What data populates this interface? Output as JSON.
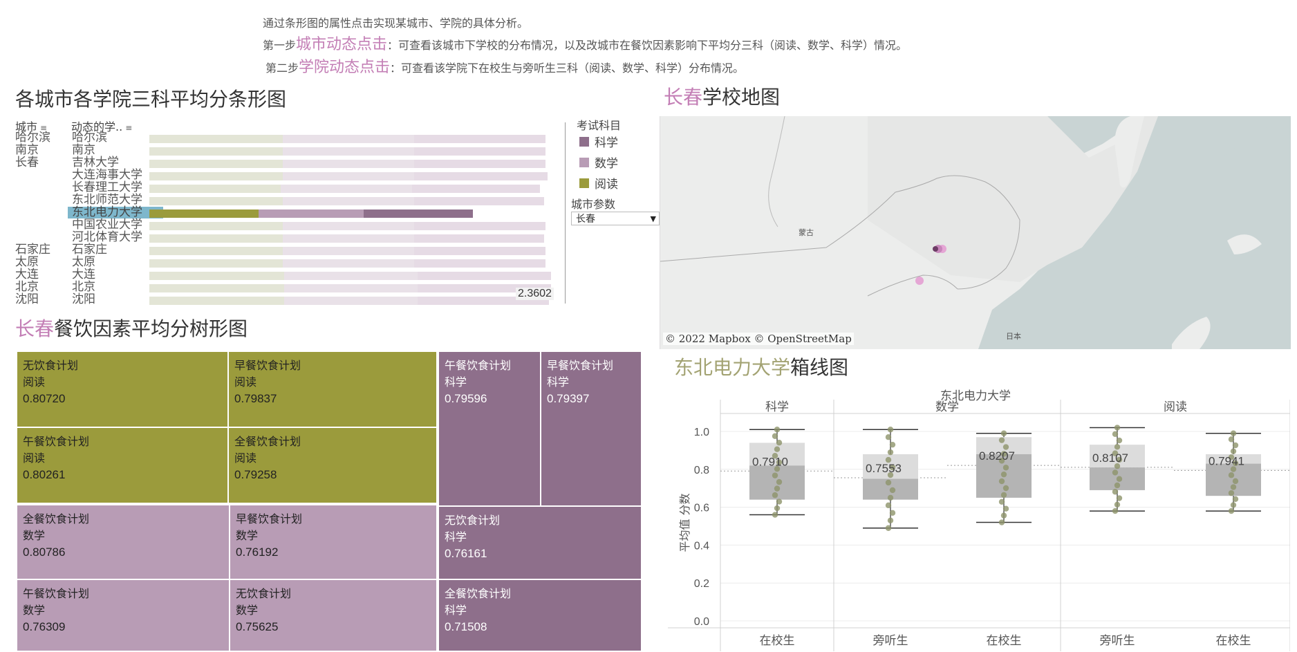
{
  "instructions": {
    "line1": "通过条形图的属性点击实现某城市、学院的具体分析。",
    "line2_prefix": "第一步",
    "line2_highlight": "城市动态点击",
    "line2_rest": "：可查看该城市下学校的分布情况，以及改城市在餐饮因素影响下平均分三科（阅读、数学、科学）情况。",
    "line3_prefix": "第二步",
    "line3_highlight": "学院动态点击",
    "line3_rest": "：可查看该学院下在校生与旁听生三科（阅读、数学、科学）分布情况。"
  },
  "bar_section": {
    "title": "各城市各学院三科平均分条形图",
    "col_city": "城市",
    "col_school": "动态的学..",
    "total_label": "2.3602",
    "rows": [
      {
        "city": "哈尔滨",
        "school": "哈尔滨",
        "read": 0.79,
        "math": 0.78,
        "sci": 0.78,
        "selected": false
      },
      {
        "city": "南京",
        "school": "南京",
        "read": 0.79,
        "math": 0.78,
        "sci": 0.78,
        "selected": false
      },
      {
        "city": "长春",
        "school": "吉林大学",
        "read": 0.79,
        "math": 0.78,
        "sci": 0.78,
        "selected": false
      },
      {
        "city": "",
        "school": "大连海事大学",
        "read": 0.79,
        "math": 0.78,
        "sci": 0.79,
        "selected": false
      },
      {
        "city": "",
        "school": "长春理工大学",
        "read": 0.78,
        "math": 0.78,
        "sci": 0.76,
        "selected": false
      },
      {
        "city": "",
        "school": "东北师范大学",
        "read": 0.79,
        "math": 0.78,
        "sci": 0.77,
        "selected": false
      },
      {
        "city": "",
        "school": "东北电力大学",
        "read": 0.79,
        "math": 0.76,
        "sci": 0.79,
        "selected": true
      },
      {
        "city": "",
        "school": "中国农业大学",
        "read": 0.79,
        "math": 0.78,
        "sci": 0.78,
        "selected": false
      },
      {
        "city": "",
        "school": "河北体育大学",
        "read": 0.79,
        "math": 0.78,
        "sci": 0.77,
        "selected": false
      },
      {
        "city": "石家庄",
        "school": "石家庄",
        "read": 0.79,
        "math": 0.78,
        "sci": 0.78,
        "selected": false
      },
      {
        "city": "太原",
        "school": "太原",
        "read": 0.79,
        "math": 0.78,
        "sci": 0.78,
        "selected": false
      },
      {
        "city": "大连",
        "school": "大连",
        "read": 0.8,
        "math": 0.79,
        "sci": 0.79,
        "selected": false
      },
      {
        "city": "北京",
        "school": "北京",
        "read": 0.8,
        "math": 0.79,
        "sci": 0.79,
        "selected": false
      },
      {
        "city": "沈阳",
        "school": "沈阳",
        "read": 0.8,
        "math": 0.79,
        "sci": 0.78,
        "selected": false
      }
    ]
  },
  "legend": {
    "title": "考试科目",
    "items": [
      {
        "label": "科学",
        "color": "#8e6f8b"
      },
      {
        "label": "数学",
        "color": "#b89cb5"
      },
      {
        "label": "阅读",
        "color": "#9b9b3c"
      }
    ]
  },
  "city_param": {
    "label": "城市参数",
    "value": "长春"
  },
  "map_section": {
    "title_accent": "长春",
    "title_rest": "学校地图",
    "label_mongolia": "蒙古",
    "label_japan": "日本",
    "credit": "© 2022 Mapbox © OpenStreetMap"
  },
  "treemap_section": {
    "title_accent": "长春",
    "title_rest": "餐饮因素平均分树形图",
    "cells": [
      {
        "plan": "无饮食计划",
        "subject": "阅读",
        "value": "0.80720",
        "color": "olive"
      },
      {
        "plan": "早餐饮食计划",
        "subject": "阅读",
        "value": "0.79837",
        "color": "olive"
      },
      {
        "plan": "午餐饮食计划",
        "subject": "阅读",
        "value": "0.80261",
        "color": "olive"
      },
      {
        "plan": "全餐饮食计划",
        "subject": "阅读",
        "value": "0.79258",
        "color": "olive"
      },
      {
        "plan": "全餐饮食计划",
        "subject": "数学",
        "value": "0.80786",
        "color": "lpink"
      },
      {
        "plan": "早餐饮食计划",
        "subject": "数学",
        "value": "0.76192",
        "color": "lpink"
      },
      {
        "plan": "午餐饮食计划",
        "subject": "数学",
        "value": "0.76309",
        "color": "lpink"
      },
      {
        "plan": "无饮食计划",
        "subject": "数学",
        "value": "0.75625",
        "color": "lpink"
      },
      {
        "plan": "午餐饮食计划",
        "subject": "科学",
        "value": "0.79596",
        "color": "mauve"
      },
      {
        "plan": "早餐饮食计划",
        "subject": "科学",
        "value": "0.79397",
        "color": "mauve"
      },
      {
        "plan": "无饮食计划",
        "subject": "科学",
        "value": "0.76161",
        "color": "mauve"
      },
      {
        "plan": "全餐饮食计划",
        "subject": "科学",
        "value": "0.71508",
        "color": "mauve"
      }
    ]
  },
  "boxplot_section": {
    "title_accent": "东北电力大学",
    "title_rest": "箱线图",
    "header": "东北电力大学",
    "panels": [
      "科学",
      "数学",
      "阅读"
    ],
    "ylabel": "平均值 分数",
    "yticks": [
      "1.0",
      "0.8",
      "0.6",
      "0.4",
      "0.2",
      "0.0"
    ],
    "xcats": [
      "在校生",
      "旁听生",
      "在校生",
      "旁听生",
      "在校生"
    ]
  },
  "chart_data": {
    "type": "box",
    "header": "东北电力大学",
    "ylabel": "平均值 分数",
    "ylim": [
      0,
      1.0
    ],
    "boxes": [
      {
        "panel": "科学",
        "category": "在校生",
        "min": 0.56,
        "q1": 0.64,
        "median": 0.82,
        "q3": 0.94,
        "max": 1.01,
        "label": "0.7910"
      },
      {
        "panel": "数学",
        "category": "旁听生",
        "min": 0.49,
        "q1": 0.64,
        "median": 0.75,
        "q3": 0.88,
        "max": 1.01,
        "label": "0.7553"
      },
      {
        "panel": "数学",
        "category": "在校生",
        "min": 0.52,
        "q1": 0.65,
        "median": 0.88,
        "q3": 0.97,
        "max": 0.99,
        "label": "0.8207"
      },
      {
        "panel": "阅读",
        "category": "旁听生",
        "min": 0.58,
        "q1": 0.69,
        "median": 0.81,
        "q3": 0.93,
        "max": 1.02,
        "label": "0.8107"
      },
      {
        "panel": "阅读",
        "category": "在校生",
        "min": 0.58,
        "q1": 0.66,
        "median": 0.83,
        "q3": 0.88,
        "max": 0.99,
        "label": "0.7941"
      }
    ]
  }
}
